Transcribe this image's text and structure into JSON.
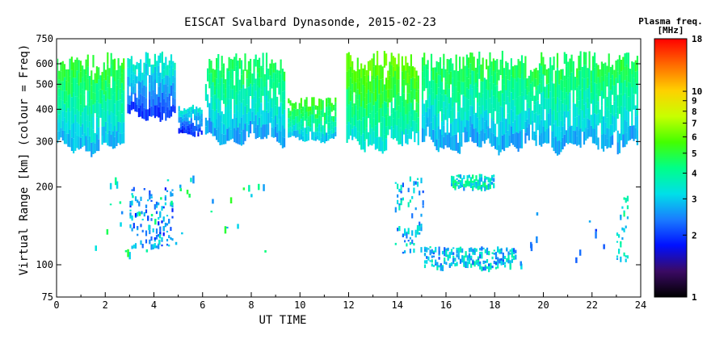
{
  "chart_data": {
    "type": "scatter",
    "title": "EISCAT Svalbard Dynasonde, 2015-02-23",
    "xlabel": "UT TIME",
    "ylabel": "Virtual Range [km] (colour = Freq)",
    "x_ticks": [
      0,
      2,
      4,
      6,
      8,
      10,
      12,
      14,
      16,
      18,
      20,
      22,
      24
    ],
    "y_ticks": [
      75,
      100,
      200,
      300,
      400,
      500,
      600,
      750
    ],
    "xlim": [
      0,
      24
    ],
    "ylim": [
      75,
      750
    ],
    "y_scale": "log",
    "grid": false,
    "colorbar": {
      "label_line1": "Plasma freq.",
      "label_line2": "[MHz]",
      "ticks": [
        1,
        2,
        3,
        4,
        5,
        6,
        7,
        8,
        9,
        10,
        18
      ],
      "range": [
        1,
        18
      ],
      "scale": "log",
      "colors": [
        "#000000",
        "#3b0a64",
        "#0010ff",
        "#1a7cff",
        "#00e0e8",
        "#00ff88",
        "#44ff00",
        "#c8ff00",
        "#ffd000",
        "#ff6a00",
        "#ff0000"
      ]
    },
    "f_layer_bands": [
      {
        "x": [
          0.0,
          2.8
        ],
        "y_lo": 235,
        "y_hi": 680,
        "freq": 4.6
      },
      {
        "x": [
          2.9,
          4.9
        ],
        "y_lo": 330,
        "y_hi": 680,
        "freq": 3.2
      },
      {
        "x": [
          5.0,
          6.0
        ],
        "y_lo": 300,
        "y_hi": 420,
        "freq": 3.0
      },
      {
        "x": [
          6.1,
          9.4
        ],
        "y_lo": 255,
        "y_hi": 680,
        "freq": 4.3
      },
      {
        "x": [
          9.5,
          11.5
        ],
        "y_lo": 280,
        "y_hi": 450,
        "freq": 4.8
      },
      {
        "x": [
          11.9,
          14.9
        ],
        "y_lo": 240,
        "y_hi": 690,
        "freq": 5.4
      },
      {
        "x": [
          15.0,
          23.9
        ],
        "y_lo": 240,
        "y_hi": 690,
        "freq": 4.4
      }
    ],
    "e_layer_bands": [
      {
        "x": [
          3.0,
          4.8
        ],
        "y_lo": 118,
        "y_hi": 200,
        "freq": 2.5
      },
      {
        "x": [
          13.9,
          15.1
        ],
        "y_lo": 112,
        "y_hi": 220,
        "freq": 3.0
      },
      {
        "x": [
          15.1,
          18.9
        ],
        "y_lo": 98,
        "y_hi": 118,
        "freq": 3.0
      },
      {
        "x": [
          16.2,
          18.0
        ],
        "y_lo": 200,
        "y_hi": 225,
        "freq": 3.5
      },
      {
        "x": [
          23.0,
          23.5
        ],
        "y_lo": 105,
        "y_hi": 200,
        "freq": 3.5
      }
    ],
    "scattered_echoes": [
      {
        "x": [
          1.5,
          8.7
        ],
        "y_lo": 110,
        "y_hi": 230,
        "freq": 3.5,
        "count": 45
      },
      {
        "x": [
          19.0,
          22.6
        ],
        "y_lo": 100,
        "y_hi": 160,
        "freq": 2.4,
        "count": 12
      }
    ]
  }
}
